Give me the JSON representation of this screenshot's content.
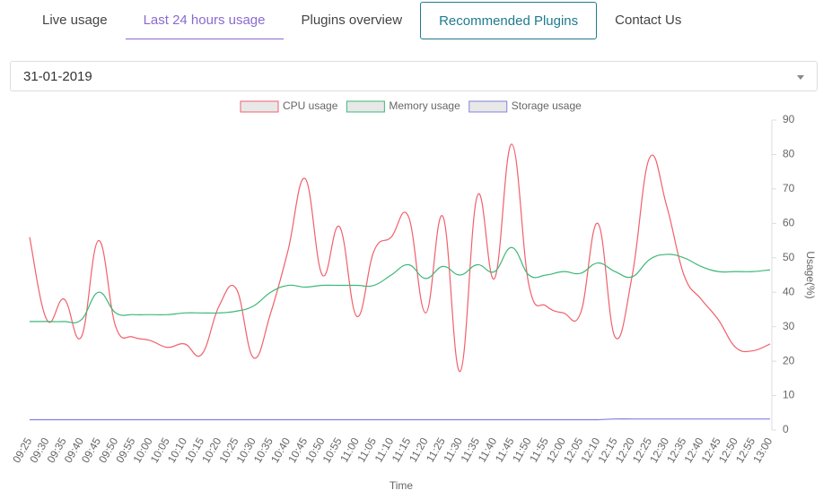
{
  "nav": {
    "tabs": [
      "Live usage",
      "Last 24 hours usage",
      "Plugins overview",
      "Recommended Plugins",
      "Contact Us"
    ]
  },
  "date_select": {
    "value": "31-01-2019"
  },
  "chart_data": {
    "type": "line",
    "x_label": "Time",
    "y_label": "Usage(%)",
    "categories": [
      "09:25",
      "09:30",
      "09:35",
      "09:40",
      "09:45",
      "09:50",
      "09:55",
      "10:00",
      "10:05",
      "10:10",
      "10:15",
      "10:20",
      "10:25",
      "10:30",
      "10:35",
      "10:40",
      "10:45",
      "10:50",
      "10:55",
      "11:00",
      "11:05",
      "11:10",
      "11:15",
      "11:20",
      "11:25",
      "11:30",
      "11:35",
      "11:40",
      "11:45",
      "11:50",
      "11:55",
      "12:00",
      "12:05",
      "12:10",
      "12:15",
      "12:20",
      "12:25",
      "12:30",
      "12:35",
      "12:40",
      "12:45",
      "12:50",
      "12:55",
      "13:00"
    ],
    "series": [
      {
        "name": "CPU usage",
        "color": "#f0606c",
        "values": [
          56,
          32,
          38,
          27,
          55,
          30,
          27,
          26,
          24,
          25,
          22,
          36,
          41,
          21,
          34,
          52,
          73,
          45,
          59,
          33,
          52,
          56,
          62,
          34,
          62,
          17,
          68,
          44,
          83,
          42,
          36,
          34,
          34,
          60,
          27,
          45,
          79,
          65,
          45,
          38,
          32,
          24,
          23,
          25
        ]
      },
      {
        "name": "Memory usage",
        "color": "#3cb878",
        "values": [
          31.5,
          31.5,
          31.5,
          32,
          40,
          34,
          33.5,
          33.5,
          33.5,
          34,
          34,
          34,
          34.5,
          36,
          40,
          42,
          41.5,
          42,
          42,
          42,
          42,
          45,
          48,
          44,
          47.5,
          45,
          48,
          46,
          53,
          45,
          45,
          46,
          45.5,
          48.5,
          46,
          44.5,
          49.5,
          51,
          50,
          47.5,
          46,
          46,
          46,
          46.5
        ]
      },
      {
        "name": "Storage usage",
        "color": "#8080e0",
        "values": [
          3,
          3,
          3,
          3,
          3,
          3,
          3,
          3,
          3,
          3,
          3,
          3,
          3,
          3,
          3,
          3,
          3,
          3,
          3,
          3,
          3,
          3,
          3,
          3,
          3,
          3,
          3,
          3,
          3,
          3,
          3,
          3,
          3,
          3,
          3.2,
          3.2,
          3.2,
          3.2,
          3.2,
          3.2,
          3.2,
          3.2,
          3.2,
          3.2
        ]
      }
    ],
    "ylim": [
      0,
      90
    ],
    "yticks": [
      0,
      10,
      20,
      30,
      40,
      50,
      60,
      70,
      80,
      90
    ],
    "grid": false,
    "legend": "top"
  }
}
